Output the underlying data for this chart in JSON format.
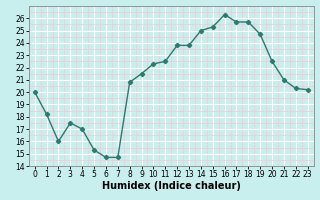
{
  "x": [
    0,
    1,
    2,
    3,
    4,
    5,
    6,
    7,
    8,
    9,
    10,
    11,
    12,
    13,
    14,
    15,
    16,
    17,
    18,
    19,
    20,
    21,
    22,
    23
  ],
  "y": [
    20,
    18.2,
    16,
    17.5,
    17,
    15.3,
    14.7,
    14.7,
    20.8,
    21.5,
    22.3,
    22.5,
    23.8,
    23.8,
    25.0,
    25.3,
    26.3,
    25.7,
    25.7,
    24.7,
    22.5,
    21.0,
    20.3,
    20.2
  ],
  "line_color": "#2d7a6e",
  "bg_color": "#c8eeee",
  "grid_major_color": "#ffffff",
  "grid_minor_color": "#f5c8d0",
  "xlabel": "Humidex (Indice chaleur)",
  "ylim": [
    14,
    27
  ],
  "xlim": [
    -0.5,
    23.5
  ],
  "yticks": [
    14,
    15,
    16,
    17,
    18,
    19,
    20,
    21,
    22,
    23,
    24,
    25,
    26
  ],
  "xticks": [
    0,
    1,
    2,
    3,
    4,
    5,
    6,
    7,
    8,
    9,
    10,
    11,
    12,
    13,
    14,
    15,
    16,
    17,
    18,
    19,
    20,
    21,
    22,
    23
  ],
  "marker": "D",
  "marker_size": 2.2,
  "line_width": 1.0,
  "xlabel_fontsize": 7,
  "tick_fontsize": 5.5
}
